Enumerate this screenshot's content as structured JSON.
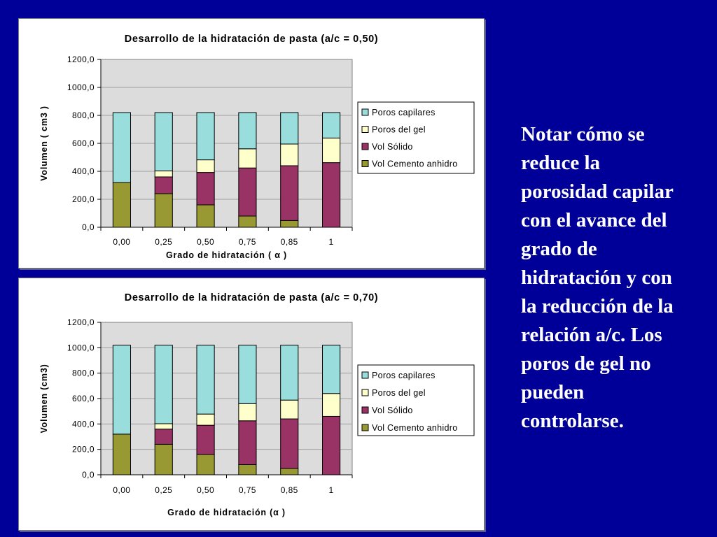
{
  "note": "Notar cómo se reduce la porosidad capilar con el avance del grado de hidratación y con la reducción de la relación a/c. Los poros de gel no pueden controlarse.",
  "colors": {
    "background": "#000099",
    "plot_area": "#dcdcdc",
    "Poros capilares": "#99dddd",
    "Poros del gel": "#ffffcc",
    "Vol Sólido": "#993366",
    "Vol Cemento anhidro": "#999933"
  },
  "chart_data": [
    {
      "type": "bar",
      "stacked": true,
      "title": "Desarrollo de la hidratación de pasta (a/c = 0,50)",
      "xlabel": "Grado de hidratación ( α )",
      "ylabel": "Volumen ( cm3 )",
      "ylim": [
        0,
        1200
      ],
      "yticks": [
        "0,0",
        "200,0",
        "400,0",
        "600,0",
        "800,0",
        "1000,0",
        "1200,0"
      ],
      "categories": [
        "0,00",
        "0,25",
        "0,50",
        "0,75",
        "0,85",
        "1"
      ],
      "grid": true,
      "legend_position": "right",
      "series": [
        {
          "name": "Vol Cemento anhidro",
          "values": [
            320,
            240,
            160,
            80,
            48,
            0
          ]
        },
        {
          "name": "Vol Sólido",
          "values": [
            0,
            120,
            232,
            344,
            392,
            462
          ]
        },
        {
          "name": "Poros del gel",
          "values": [
            0,
            43,
            90,
            137,
            155,
            176
          ]
        },
        {
          "name": "Poros capilares",
          "values": [
            500,
            417,
            338,
            259,
            225,
            182
          ]
        }
      ]
    },
    {
      "type": "bar",
      "stacked": true,
      "title": "Desarrollo de la hidratación de pasta (a/c = 0,70)",
      "xlabel": "Grado de hidratación (α )",
      "ylabel": "Volumen (cm3)",
      "ylim": [
        0,
        1200
      ],
      "yticks": [
        "0,0",
        "200,0",
        "400,0",
        "600,0",
        "800,0",
        "1000,0",
        "1200,0"
      ],
      "categories": [
        "0,00",
        "0,25",
        "0,50",
        "0,75",
        "0,85",
        "1"
      ],
      "grid": true,
      "legend_position": "right",
      "series": [
        {
          "name": "Vol Cemento anhidro",
          "values": [
            320,
            240,
            160,
            80,
            50,
            0
          ]
        },
        {
          "name": "Vol Sólido",
          "values": [
            0,
            120,
            230,
            345,
            390,
            460
          ]
        },
        {
          "name": "Poros del gel",
          "values": [
            0,
            42,
            88,
            135,
            148,
            180
          ]
        },
        {
          "name": "Poros capilares",
          "values": [
            700,
            618,
            542,
            460,
            432,
            380
          ]
        }
      ]
    }
  ]
}
